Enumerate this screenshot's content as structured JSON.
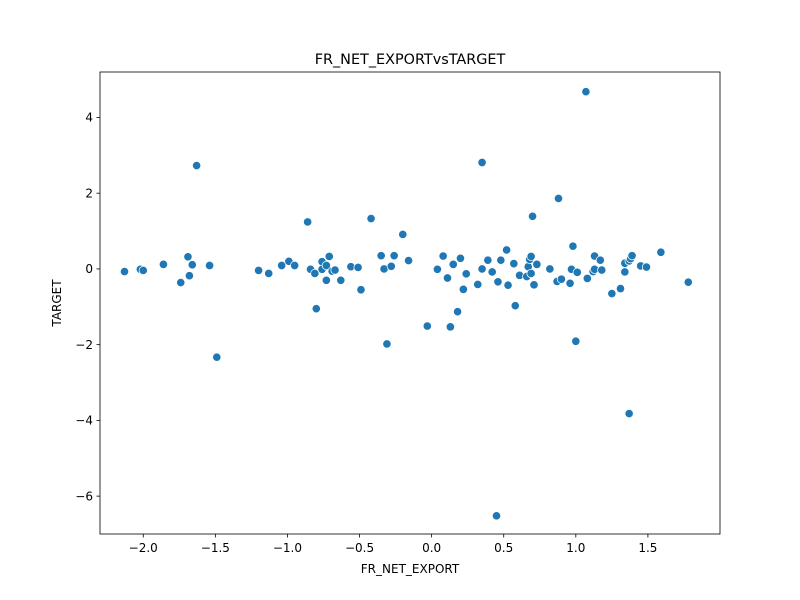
{
  "chart_data": {
    "type": "scatter",
    "title": "FR_NET_EXPORTvsTARGET",
    "xlabel": "FR_NET_EXPORT",
    "ylabel": "TARGET",
    "xlim": [
      -2.3,
      2.0
    ],
    "ylim": [
      -7.0,
      5.2
    ],
    "xticks": [
      -2.0,
      -1.5,
      -1.0,
      -0.5,
      0.0,
      0.5,
      1.0,
      1.5
    ],
    "xtick_labels": [
      "−2.0",
      "−1.5",
      "−1.0",
      "−0.5",
      "0.0",
      "0.5",
      "1.0",
      "1.5"
    ],
    "yticks": [
      -6,
      -4,
      -2,
      0,
      2,
      4
    ],
    "ytick_labels": [
      "−6",
      "−4",
      "−2",
      "0",
      "2",
      "4"
    ],
    "grid": false,
    "legend": false,
    "marker_color": "#1f77b4",
    "points": [
      {
        "x": -2.13,
        "y": -0.07
      },
      {
        "x": -2.02,
        "y": -0.01
      },
      {
        "x": -2.0,
        "y": -0.04
      },
      {
        "x": -1.86,
        "y": 0.12
      },
      {
        "x": -1.74,
        "y": -0.36
      },
      {
        "x": -1.69,
        "y": 0.32
      },
      {
        "x": -1.68,
        "y": -0.18
      },
      {
        "x": -1.66,
        "y": 0.11
      },
      {
        "x": -1.63,
        "y": 2.73
      },
      {
        "x": -1.54,
        "y": 0.09
      },
      {
        "x": -1.49,
        "y": -2.33
      },
      {
        "x": -1.2,
        "y": -0.04
      },
      {
        "x": -1.13,
        "y": -0.12
      },
      {
        "x": -1.04,
        "y": 0.09
      },
      {
        "x": -0.99,
        "y": 0.2
      },
      {
        "x": -0.95,
        "y": 0.09
      },
      {
        "x": -0.86,
        "y": 1.24
      },
      {
        "x": -0.84,
        "y": -0.01
      },
      {
        "x": -0.81,
        "y": -0.12
      },
      {
        "x": -0.8,
        "y": -1.05
      },
      {
        "x": -0.76,
        "y": 0.19
      },
      {
        "x": -0.76,
        "y": -0.01
      },
      {
        "x": -0.73,
        "y": 0.09
      },
      {
        "x": -0.73,
        "y": -0.3
      },
      {
        "x": -0.71,
        "y": 0.33
      },
      {
        "x": -0.69,
        "y": -0.06
      },
      {
        "x": -0.67,
        "y": -0.03
      },
      {
        "x": -0.63,
        "y": -0.3
      },
      {
        "x": -0.56,
        "y": 0.06
      },
      {
        "x": -0.51,
        "y": 0.04
      },
      {
        "x": -0.49,
        "y": -0.55
      },
      {
        "x": -0.42,
        "y": 1.33
      },
      {
        "x": -0.35,
        "y": 0.35
      },
      {
        "x": -0.33,
        "y": 0.0
      },
      {
        "x": -0.31,
        "y": -1.98
      },
      {
        "x": -0.28,
        "y": 0.07
      },
      {
        "x": -0.26,
        "y": 0.35
      },
      {
        "x": -0.2,
        "y": 0.91
      },
      {
        "x": -0.16,
        "y": 0.22
      },
      {
        "x": -0.03,
        "y": -1.51
      },
      {
        "x": 0.04,
        "y": -0.01
      },
      {
        "x": 0.08,
        "y": 0.34
      },
      {
        "x": 0.11,
        "y": -0.24
      },
      {
        "x": 0.13,
        "y": -1.53
      },
      {
        "x": 0.15,
        "y": 0.12
      },
      {
        "x": 0.18,
        "y": -1.13
      },
      {
        "x": 0.2,
        "y": 0.28
      },
      {
        "x": 0.22,
        "y": -0.54
      },
      {
        "x": 0.24,
        "y": -0.13
      },
      {
        "x": 0.32,
        "y": -0.41
      },
      {
        "x": 0.35,
        "y": 2.81
      },
      {
        "x": 0.35,
        "y": 0.0
      },
      {
        "x": 0.39,
        "y": 0.23
      },
      {
        "x": 0.42,
        "y": -0.08
      },
      {
        "x": 0.45,
        "y": -6.52
      },
      {
        "x": 0.46,
        "y": -0.34
      },
      {
        "x": 0.48,
        "y": 0.23
      },
      {
        "x": 0.52,
        "y": 0.5
      },
      {
        "x": 0.53,
        "y": -0.43
      },
      {
        "x": 0.57,
        "y": 0.14
      },
      {
        "x": 0.58,
        "y": -0.97
      },
      {
        "x": 0.61,
        "y": -0.17
      },
      {
        "x": 0.66,
        "y": -0.2
      },
      {
        "x": 0.67,
        "y": 0.06
      },
      {
        "x": 0.68,
        "y": 0.25
      },
      {
        "x": 0.69,
        "y": 0.33
      },
      {
        "x": 0.69,
        "y": -0.12
      },
      {
        "x": 0.7,
        "y": 1.39
      },
      {
        "x": 0.71,
        "y": -0.42
      },
      {
        "x": 0.73,
        "y": 0.12
      },
      {
        "x": 0.82,
        "y": 0.0
      },
      {
        "x": 0.87,
        "y": -0.33
      },
      {
        "x": 0.88,
        "y": 1.86
      },
      {
        "x": 0.9,
        "y": -0.27
      },
      {
        "x": 0.96,
        "y": -0.38
      },
      {
        "x": 0.97,
        "y": -0.01
      },
      {
        "x": 0.98,
        "y": 0.6
      },
      {
        "x": 1.0,
        "y": -1.91
      },
      {
        "x": 1.01,
        "y": -0.09
      },
      {
        "x": 1.07,
        "y": 4.68
      },
      {
        "x": 1.08,
        "y": -0.25
      },
      {
        "x": 1.12,
        "y": -0.07
      },
      {
        "x": 1.13,
        "y": -0.01
      },
      {
        "x": 1.13,
        "y": 0.34
      },
      {
        "x": 1.17,
        "y": 0.23
      },
      {
        "x": 1.18,
        "y": -0.03
      },
      {
        "x": 1.25,
        "y": -0.65
      },
      {
        "x": 1.31,
        "y": -0.52
      },
      {
        "x": 1.34,
        "y": 0.15
      },
      {
        "x": 1.34,
        "y": -0.08
      },
      {
        "x": 1.37,
        "y": -3.82
      },
      {
        "x": 1.37,
        "y": 0.21
      },
      {
        "x": 1.38,
        "y": 0.27
      },
      {
        "x": 1.39,
        "y": 0.35
      },
      {
        "x": 1.45,
        "y": 0.08
      },
      {
        "x": 1.49,
        "y": 0.05
      },
      {
        "x": 1.59,
        "y": 0.44
      },
      {
        "x": 1.78,
        "y": -0.35
      }
    ]
  }
}
